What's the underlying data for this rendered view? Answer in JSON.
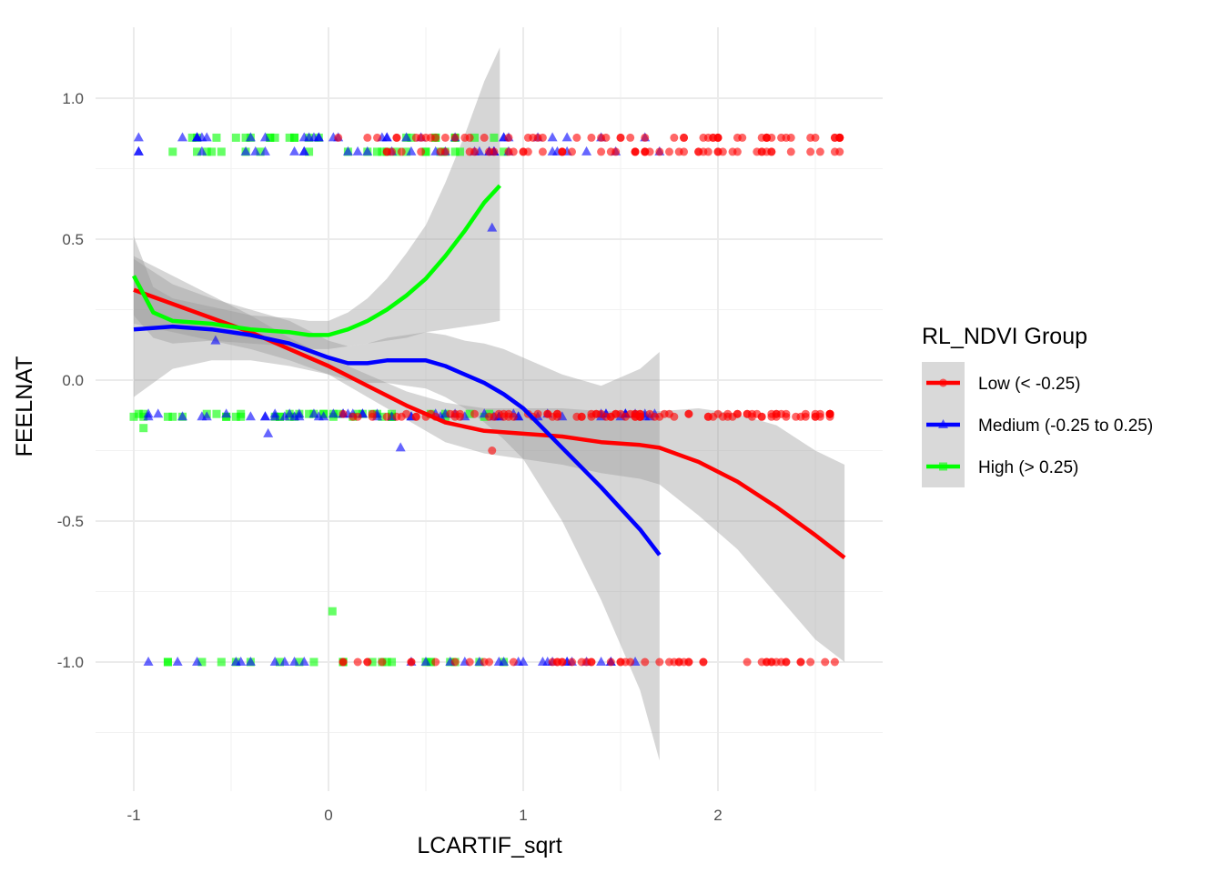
{
  "chart_data": {
    "type": "scatter",
    "title": "",
    "xlabel": "LCARTIF_sqrt",
    "ylabel": "FEELNAT",
    "xlim": [
      -1.2,
      2.85
    ],
    "ylim": [
      -1.45,
      1.27
    ],
    "x_ticks": [
      -1,
      0,
      1,
      2
    ],
    "x_tick_labels": [
      "-1",
      "0",
      "1",
      "2"
    ],
    "y_ticks": [
      1.0,
      0.5,
      0.0,
      -0.5,
      -1.0
    ],
    "y_tick_labels": [
      "1.0",
      "0.5",
      "0.0",
      "-0.5",
      "-1.0"
    ],
    "grid": true,
    "legend": {
      "title": "RL_NDVI Group",
      "position": "right",
      "entries": [
        {
          "label": "Low (< -0.25)",
          "color": "#ff0000",
          "shape": "circle"
        },
        {
          "label": "Medium (-0.25 to 0.25)",
          "color": "#0000ff",
          "shape": "triangle"
        },
        {
          "label": "High (> 0.25)",
          "color": "#00ff00",
          "shape": "square"
        }
      ]
    },
    "series": [
      {
        "name": "Low (< -0.25)",
        "color": "#ff0000",
        "shape": "circle",
        "smooth": {
          "x": [
            -1.0,
            -0.8,
            -0.6,
            -0.4,
            -0.2,
            0.0,
            0.2,
            0.4,
            0.6,
            0.8,
            1.0,
            1.2,
            1.4,
            1.6,
            1.7,
            1.9,
            2.1,
            2.3,
            2.5,
            2.65
          ],
          "y": [
            0.32,
            0.27,
            0.22,
            0.17,
            0.11,
            0.05,
            -0.02,
            -0.09,
            -0.15,
            -0.18,
            -0.19,
            -0.2,
            -0.22,
            -0.23,
            -0.24,
            -0.29,
            -0.36,
            -0.45,
            -0.55,
            -0.63
          ],
          "lower": [
            0.2,
            0.17,
            0.14,
            0.11,
            0.07,
            0.02,
            -0.06,
            -0.14,
            -0.22,
            -0.26,
            -0.28,
            -0.3,
            -0.33,
            -0.35,
            -0.37,
            -0.48,
            -0.6,
            -0.76,
            -0.92,
            -1.0
          ],
          "upper": [
            0.44,
            0.37,
            0.3,
            0.23,
            0.15,
            0.08,
            0.02,
            -0.04,
            -0.08,
            -0.1,
            -0.1,
            -0.1,
            -0.11,
            -0.11,
            -0.11,
            -0.1,
            -0.12,
            -0.16,
            -0.25,
            -0.3
          ]
        },
        "points": {
          "y_levels": [
            0.81,
            0.86,
            -0.13,
            -0.12,
            -1.0
          ],
          "x_min": 0.0,
          "x_max": 2.65,
          "extra": [
            [
              0.84,
              -0.25
            ],
            [
              2.6,
              0.86
            ]
          ]
        }
      },
      {
        "name": "Medium (-0.25 to 0.25)",
        "color": "#0000ff",
        "shape": "triangle",
        "smooth": {
          "x": [
            -1.0,
            -0.8,
            -0.6,
            -0.4,
            -0.2,
            0.0,
            0.1,
            0.2,
            0.3,
            0.4,
            0.5,
            0.6,
            0.7,
            0.8,
            0.9,
            1.0,
            1.2,
            1.4,
            1.6,
            1.7
          ],
          "y": [
            0.18,
            0.19,
            0.18,
            0.16,
            0.13,
            0.08,
            0.06,
            0.06,
            0.07,
            0.07,
            0.07,
            0.05,
            0.02,
            -0.01,
            -0.05,
            -0.1,
            -0.24,
            -0.38,
            -0.53,
            -0.62
          ],
          "lower": [
            -0.06,
            0.04,
            0.07,
            0.07,
            0.05,
            0.02,
            0.0,
            -0.01,
            -0.01,
            -0.02,
            -0.03,
            -0.06,
            -0.1,
            -0.15,
            -0.21,
            -0.28,
            -0.5,
            -0.78,
            -1.1,
            -1.35
          ],
          "upper": [
            0.43,
            0.34,
            0.29,
            0.25,
            0.21,
            0.14,
            0.12,
            0.13,
            0.15,
            0.16,
            0.17,
            0.16,
            0.14,
            0.13,
            0.11,
            0.08,
            0.02,
            -0.02,
            0.04,
            0.1
          ]
        },
        "points": {
          "y_levels": [
            0.81,
            0.86,
            -0.13,
            -0.12,
            -1.0
          ],
          "x_min": -1.0,
          "x_max": 1.7,
          "extra": [
            [
              -0.58,
              0.14
            ],
            [
              -0.31,
              -0.19
            ],
            [
              0.37,
              -0.24
            ],
            [
              0.84,
              0.54
            ]
          ]
        }
      },
      {
        "name": "High (> 0.25)",
        "color": "#00ff00",
        "shape": "square",
        "smooth": {
          "x": [
            -1.0,
            -0.9,
            -0.8,
            -0.6,
            -0.4,
            -0.2,
            -0.1,
            0.0,
            0.1,
            0.2,
            0.3,
            0.4,
            0.5,
            0.6,
            0.7,
            0.8,
            0.88
          ],
          "y": [
            0.37,
            0.24,
            0.21,
            0.2,
            0.18,
            0.17,
            0.16,
            0.16,
            0.18,
            0.21,
            0.25,
            0.3,
            0.36,
            0.44,
            0.53,
            0.63,
            0.69
          ],
          "lower": [
            0.23,
            0.15,
            0.13,
            0.14,
            0.13,
            0.12,
            0.11,
            0.11,
            0.12,
            0.13,
            0.14,
            0.15,
            0.17,
            0.18,
            0.19,
            0.2,
            0.21
          ],
          "upper": [
            0.51,
            0.33,
            0.29,
            0.26,
            0.23,
            0.22,
            0.21,
            0.21,
            0.24,
            0.29,
            0.36,
            0.45,
            0.55,
            0.7,
            0.87,
            1.06,
            1.18
          ]
        },
        "points": {
          "y_levels": [
            0.81,
            0.86,
            -0.13,
            -0.12,
            -1.0
          ],
          "x_min": -1.0,
          "x_max": 0.9,
          "extra": [
            [
              -0.95,
              -0.17
            ],
            [
              0.02,
              -0.82
            ]
          ]
        }
      }
    ]
  }
}
